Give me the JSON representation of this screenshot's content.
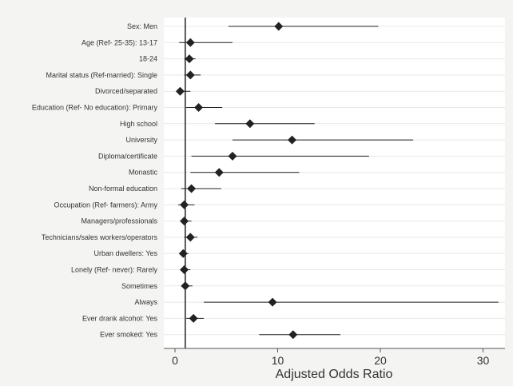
{
  "chart_data": {
    "type": "forest",
    "title": "",
    "xlabel": "Adjusted Odds Ratio",
    "ylabel": "",
    "xlim": [
      -1,
      32
    ],
    "xticks": [
      0,
      10,
      20,
      30
    ],
    "xtick_labels": [
      "0",
      "10",
      "20",
      "30"
    ],
    "reference_line": 1,
    "grid": "horizontal",
    "legend": "none",
    "marker_color": "#222222",
    "line_color": "#222222",
    "categories": [
      "Sex: Men",
      "Age (Ref- 25-35): 13-17",
      "18-24",
      "Marital status (Ref-married): Single",
      "Divorced/separated",
      "Education (Ref- No education): Primary",
      "High school",
      "University",
      "Diploma/certificate",
      "Monastic",
      "Non-formal education",
      "Occupation (Ref- farmers): Army",
      "Managers/professionals",
      "Technicians/sales workers/operators",
      "Urban dwellers: Yes",
      "Lonely (Ref- never): Rarely",
      "Sometimes",
      "Always",
      "Ever drank alcohol: Yes",
      "Ever smoked: Yes"
    ],
    "estimates": [
      10.1,
      1.5,
      1.4,
      1.5,
      0.5,
      2.3,
      7.3,
      11.4,
      5.6,
      4.3,
      1.6,
      0.9,
      0.9,
      1.5,
      0.8,
      0.9,
      1.0,
      9.5,
      1.8,
      11.5
    ],
    "ci_lower": [
      5.2,
      0.4,
      0.9,
      0.9,
      0.2,
      1.1,
      3.9,
      5.6,
      1.6,
      1.5,
      0.6,
      0.3,
      0.5,
      0.9,
      0.5,
      0.5,
      0.6,
      2.8,
      1.1,
      8.2
    ],
    "ci_upper": [
      19.8,
      5.6,
      2.0,
      2.5,
      1.5,
      4.6,
      13.6,
      23.2,
      18.9,
      12.1,
      4.5,
      1.9,
      1.6,
      2.2,
      1.3,
      1.5,
      1.7,
      31.5,
      2.8,
      16.1
    ]
  }
}
